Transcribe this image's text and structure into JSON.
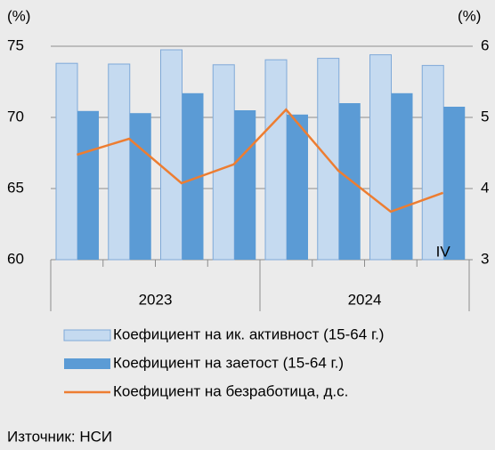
{
  "chart_data": {
    "type": "bar_line",
    "y_unit": "(%)",
    "y2_unit": "(%)",
    "categories": [
      null,
      null,
      null,
      null,
      null,
      null,
      null,
      "IV"
    ],
    "groups": [
      "2023",
      "2024"
    ],
    "series": [
      {
        "name": "Коефициент на ик. активност (15-64 г.)",
        "type": "bar",
        "color": "#c5daf0",
        "stroke": "#7fa9d8",
        "values": [
          73.8,
          73.75,
          74.75,
          73.7,
          74.05,
          74.15,
          74.4,
          73.65
        ]
      },
      {
        "name": "Коефициент на заетост (15-64 г.)",
        "type": "bar",
        "color": "#5b9bd5",
        "values": [
          70.45,
          70.3,
          71.7,
          70.5,
          70.2,
          71.0,
          71.7,
          70.75
        ]
      },
      {
        "name": "Коефициент на безработица, д.с.",
        "type": "line",
        "color": "#ed7d31",
        "axis": "y2",
        "values": [
          4.475,
          4.7,
          4.075,
          4.34,
          5.11,
          4.25,
          3.675,
          3.94
        ]
      }
    ],
    "ylim": [
      60,
      75
    ],
    "yticks": [
      60,
      65,
      70,
      75
    ],
    "y2lim": [
      3,
      6
    ],
    "y2ticks": [
      3,
      4,
      5,
      6
    ],
    "grid": true
  },
  "source": "Източник: НСИ"
}
